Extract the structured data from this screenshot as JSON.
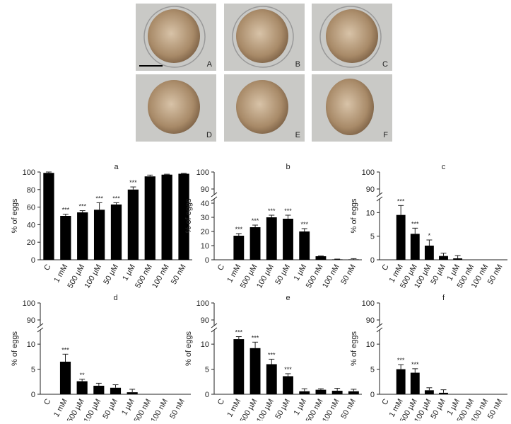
{
  "images": [
    {
      "label": "A"
    },
    {
      "label": "B"
    },
    {
      "label": "C"
    },
    {
      "label": "D"
    },
    {
      "label": "E"
    },
    {
      "label": "F"
    }
  ],
  "chart_data": [
    {
      "type": "bar",
      "title": "a",
      "y_label": "% of eggs",
      "color": "#000000",
      "categories": [
        "C",
        "1 mM",
        "500 µM",
        "100 µM",
        "50 µM",
        "1 µM",
        "500 nM",
        "100 nM",
        "50 nM"
      ],
      "values": [
        99,
        50,
        54,
        57,
        63,
        80,
        95,
        97,
        98
      ],
      "errors": [
        1,
        2,
        2,
        8,
        2,
        3,
        1.5,
        0.5,
        0.5
      ],
      "annotations": [
        null,
        "***",
        "***",
        "***",
        "***",
        "***",
        null,
        null,
        null
      ],
      "ylim": [
        0,
        100
      ],
      "yticks": [
        0,
        20,
        40,
        60,
        80,
        100
      ]
    },
    {
      "type": "bar",
      "title": "b",
      "y_label": "% of eggs",
      "color": "#000000",
      "categories": [
        "C",
        "1 mM",
        "500 µM",
        "100 µM",
        "50 µM",
        "1 µM",
        "500 nM",
        "100 nM",
        "50 nM"
      ],
      "values": [
        0,
        17,
        23,
        30,
        29,
        20,
        2.5,
        0.3,
        0.3
      ],
      "errors": [
        0,
        1.5,
        1.5,
        1.5,
        2.5,
        2,
        0.2,
        0.2,
        0.5
      ],
      "annotations": [
        null,
        "***",
        "***",
        "***",
        "***",
        "***",
        null,
        null,
        null
      ],
      "ylim": [
        0,
        40
      ],
      "yticks": [
        0,
        10,
        20,
        30,
        40
      ],
      "y_upper_lim": [
        90,
        100
      ],
      "y_upper_ticks": [
        90,
        100
      ]
    },
    {
      "type": "bar",
      "title": "c",
      "y_label": "% of eggs",
      "color": "#000000",
      "categories": [
        "C",
        "1 mM",
        "500 µM",
        "100 µM",
        "50 µM",
        "1 µM",
        "500 nM",
        "100 nM",
        "50 nM"
      ],
      "values": [
        0,
        9.5,
        5.5,
        3,
        0.8,
        0.3,
        0,
        0,
        0
      ],
      "errors": [
        0,
        2,
        1.2,
        1.2,
        0.6,
        0.6,
        0,
        0,
        0
      ],
      "annotations": [
        null,
        "***",
        "***",
        "*",
        null,
        null,
        null,
        null,
        null
      ],
      "ylim": [
        0,
        12
      ],
      "yticks": [
        0,
        5,
        10
      ],
      "y_upper_lim": [
        90,
        100
      ],
      "y_upper_ticks": [
        90,
        100
      ]
    },
    {
      "type": "bar",
      "title": "d",
      "y_label": "% of eggs",
      "color": "#000000",
      "categories": [
        "C",
        "1 mM",
        "500 µM",
        "100 µM",
        "50 µM",
        "1 µM",
        "500 nM",
        "100 nM",
        "50 nM"
      ],
      "values": [
        0,
        6.5,
        2.6,
        1.7,
        1.3,
        0.4,
        0,
        0,
        0
      ],
      "errors": [
        0,
        1.5,
        0.4,
        0.5,
        0.6,
        0.6,
        0,
        0,
        0
      ],
      "annotations": [
        null,
        "***",
        "**",
        null,
        null,
        null,
        null,
        null,
        null
      ],
      "ylim": [
        0,
        12
      ],
      "yticks": [
        0,
        5,
        10
      ],
      "y_upper_lim": [
        90,
        100
      ],
      "y_upper_ticks": [
        90,
        100
      ]
    },
    {
      "type": "bar",
      "title": "e",
      "y_label": "% of eggs",
      "color": "#000000",
      "categories": [
        "C",
        "1 mM",
        "500 µM",
        "100 µM",
        "50 µM",
        "1 µM",
        "500 nM",
        "100 nM",
        "50 nM"
      ],
      "values": [
        0,
        11,
        9.2,
        6,
        3.6,
        0.6,
        0.9,
        0.7,
        0.6
      ],
      "errors": [
        0,
        0.5,
        1.2,
        1,
        0.5,
        0.5,
        0.2,
        0.5,
        0.4
      ],
      "annotations": [
        null,
        "***",
        "***",
        "***",
        "***",
        null,
        null,
        null,
        null
      ],
      "ylim": [
        0,
        12
      ],
      "yticks": [
        0,
        5,
        10
      ],
      "y_upper_lim": [
        90,
        100
      ],
      "y_upper_ticks": [
        90,
        100
      ]
    },
    {
      "type": "bar",
      "title": "f",
      "y_label": "% of eggs",
      "color": "#000000",
      "categories": [
        "C",
        "1 mM",
        "500 µM",
        "100 µM",
        "50 µM",
        "1 µM",
        "500 nM",
        "100 nM",
        "50 nM"
      ],
      "values": [
        0,
        5,
        4.3,
        0.8,
        0.3,
        0,
        0,
        0,
        0
      ],
      "errors": [
        0,
        0.9,
        0.8,
        0.5,
        0.6,
        0,
        0,
        0,
        0
      ],
      "annotations": [
        null,
        "***",
        "***",
        null,
        null,
        null,
        null,
        null,
        null
      ],
      "ylim": [
        0,
        12
      ],
      "yticks": [
        0,
        5,
        10
      ],
      "y_upper_lim": [
        90,
        100
      ],
      "y_upper_ticks": [
        90,
        100
      ]
    }
  ]
}
